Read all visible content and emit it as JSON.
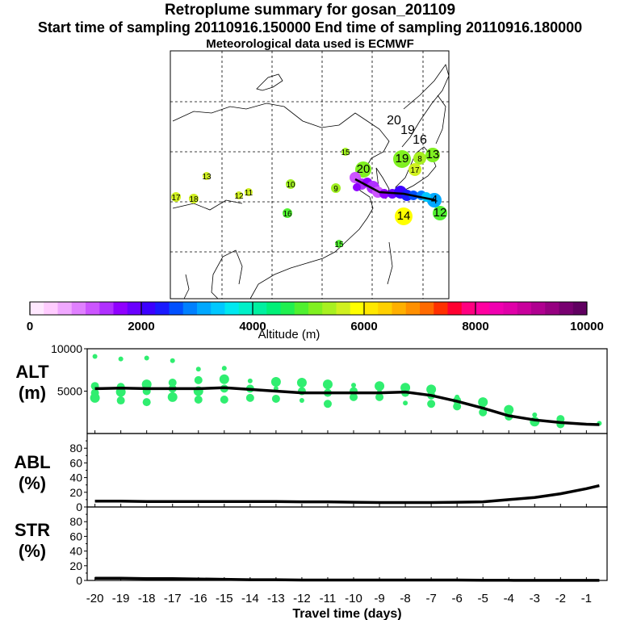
{
  "header": {
    "title": "Retroplume summary for gosan_201109",
    "sampling_line": "Start time of sampling 20110916.150000     End time of sampling 20110916.180000",
    "met_line": "Meteorological data used is ECMWF"
  },
  "map": {
    "description_labels": [
      "20",
      "19",
      "16",
      "15",
      "18",
      "11",
      "19",
      "8",
      "17",
      "20",
      "13",
      "12",
      "11",
      "10",
      "9",
      "16",
      "17",
      "18",
      "14",
      "13",
      "15",
      "12",
      "4"
    ]
  },
  "colorbar": {
    "ticks": [
      "0",
      "2000",
      "4000",
      "6000",
      "8000",
      "10000"
    ],
    "label": "Altitude (m)",
    "colors": [
      "#ffe8ff",
      "#ffccff",
      "#f0a8ff",
      "#e080ff",
      "#cc55ff",
      "#b030ff",
      "#9000ff",
      "#6a00ff",
      "#3c00ff",
      "#1a1aff",
      "#0050ff",
      "#0080ff",
      "#00a8ff",
      "#00c8ff",
      "#00e8f0",
      "#00f0c8",
      "#00f0a0",
      "#00f078",
      "#20f050",
      "#50f030",
      "#80f020",
      "#a8f020",
      "#d0f020",
      "#ffff00",
      "#ffe800",
      "#ffd000",
      "#ffb000",
      "#ff9000",
      "#ff6a00",
      "#ff3000",
      "#ff0030",
      "#ff0080",
      "#ff00a0",
      "#f000b0",
      "#e000a8",
      "#c8009c",
      "#b00090",
      "#960080",
      "#780070",
      "#600060"
    ]
  },
  "chart_data": [
    {
      "type": "line",
      "title": "ALT (m)",
      "ylabel": "ALT\n(m)",
      "ylim": [
        0,
        10000
      ],
      "yticks": [
        "5000",
        "10000"
      ],
      "x": [
        -20,
        -19,
        -18,
        -17,
        -16,
        -15,
        -14,
        -13,
        -12,
        -11,
        -10,
        -9,
        -8,
        -7,
        -6,
        -5,
        -4,
        -3,
        -2,
        -1,
        -0.5
      ],
      "values": [
        5300,
        5350,
        5300,
        5300,
        5300,
        5400,
        5200,
        5000,
        4800,
        4800,
        4800,
        4800,
        4900,
        4500,
        3800,
        3000,
        2100,
        1600,
        1300,
        1100,
        1050
      ],
      "scatter": [
        {
          "x": -20,
          "y": 9100
        },
        {
          "x": -20,
          "y": 5600
        },
        {
          "x": -20,
          "y": 4800
        },
        {
          "x": -20,
          "y": 4200
        },
        {
          "x": -19,
          "y": 8800
        },
        {
          "x": -19,
          "y": 5500
        },
        {
          "x": -19,
          "y": 4900
        },
        {
          "x": -19,
          "y": 3900
        },
        {
          "x": -18,
          "y": 8900
        },
        {
          "x": -18,
          "y": 5800
        },
        {
          "x": -18,
          "y": 5000
        },
        {
          "x": -18,
          "y": 3700
        },
        {
          "x": -17,
          "y": 8600
        },
        {
          "x": -17,
          "y": 6000
        },
        {
          "x": -17,
          "y": 5300
        },
        {
          "x": -17,
          "y": 4300
        },
        {
          "x": -16,
          "y": 7600
        },
        {
          "x": -16,
          "y": 6300
        },
        {
          "x": -16,
          "y": 5000
        },
        {
          "x": -16,
          "y": 4000
        },
        {
          "x": -15,
          "y": 7700
        },
        {
          "x": -15,
          "y": 6400
        },
        {
          "x": -15,
          "y": 5300
        },
        {
          "x": -15,
          "y": 4000
        },
        {
          "x": -14,
          "y": 6200
        },
        {
          "x": -14,
          "y": 5300
        },
        {
          "x": -14,
          "y": 4200
        },
        {
          "x": -13,
          "y": 6100
        },
        {
          "x": -13,
          "y": 5300
        },
        {
          "x": -13,
          "y": 4100
        },
        {
          "x": -12,
          "y": 6000
        },
        {
          "x": -12,
          "y": 5000
        },
        {
          "x": -12,
          "y": 3900
        },
        {
          "x": -11,
          "y": 5800
        },
        {
          "x": -11,
          "y": 4800
        },
        {
          "x": -11,
          "y": 3500
        },
        {
          "x": -10,
          "y": 5700
        },
        {
          "x": -10,
          "y": 5000
        },
        {
          "x": -10,
          "y": 4300
        },
        {
          "x": -9,
          "y": 5600
        },
        {
          "x": -9,
          "y": 4900
        },
        {
          "x": -9,
          "y": 4300
        },
        {
          "x": -8,
          "y": 5400
        },
        {
          "x": -8,
          "y": 4800
        },
        {
          "x": -8,
          "y": 3600
        },
        {
          "x": -7,
          "y": 5200
        },
        {
          "x": -7,
          "y": 4500
        },
        {
          "x": -7,
          "y": 3500
        },
        {
          "x": -6,
          "y": 4300
        },
        {
          "x": -6,
          "y": 3900
        },
        {
          "x": -6,
          "y": 3200
        },
        {
          "x": -5,
          "y": 3700
        },
        {
          "x": -5,
          "y": 3000
        },
        {
          "x": -5,
          "y": 2500
        },
        {
          "x": -4,
          "y": 2800
        },
        {
          "x": -4,
          "y": 2000
        },
        {
          "x": -3,
          "y": 2200
        },
        {
          "x": -3,
          "y": 1400
        },
        {
          "x": -2,
          "y": 1700
        },
        {
          "x": -2,
          "y": 1100
        },
        {
          "x": -0.5,
          "y": 1200
        }
      ]
    },
    {
      "type": "line",
      "title": "ABL (%)",
      "ylabel": "ABL\n(%)",
      "ylim": [
        0,
        100
      ],
      "yticks": [
        "0",
        "20",
        "40",
        "60",
        "80"
      ],
      "x": [
        -20,
        -19,
        -18,
        -17,
        -16,
        -15,
        -14,
        -13,
        -12,
        -11,
        -10,
        -9,
        -8,
        -7,
        -6,
        -5,
        -4,
        -3,
        -2,
        -1,
        -0.5
      ],
      "values": [
        8,
        8,
        7.5,
        7.5,
        7.5,
        7.5,
        7.5,
        7.5,
        7,
        7,
        6.5,
        6,
        6,
        6,
        6.5,
        7,
        10,
        13,
        18,
        25,
        29
      ]
    },
    {
      "type": "line",
      "title": "STR (%)",
      "ylabel": "STR\n(%)",
      "ylim": [
        0,
        100
      ],
      "yticks": [
        "0",
        "20",
        "40",
        "60",
        "80"
      ],
      "xlabel": "Travel time (days)",
      "xticks": [
        "-20",
        "-19",
        "-18",
        "-17",
        "-16",
        "-15",
        "-14",
        "-13",
        "-12",
        "-11",
        "-10",
        "-9",
        "-8",
        "-7",
        "-6",
        "-5",
        "-4",
        "-3",
        "-2",
        "-1"
      ],
      "x": [
        -20,
        -19,
        -18,
        -17,
        -16,
        -15,
        -14,
        -13,
        -12,
        -11,
        -10,
        -9,
        -8,
        -7,
        -6,
        -5,
        -4,
        -3,
        -2,
        -1,
        -0.5
      ],
      "values": [
        3,
        3,
        2.5,
        2.5,
        2,
        1.5,
        1,
        1,
        0.5,
        0.5,
        0.5,
        0.5,
        0.5,
        0.5,
        0.5,
        0.3,
        0.2,
        0.1,
        0.1,
        0.1,
        0.1
      ]
    }
  ]
}
